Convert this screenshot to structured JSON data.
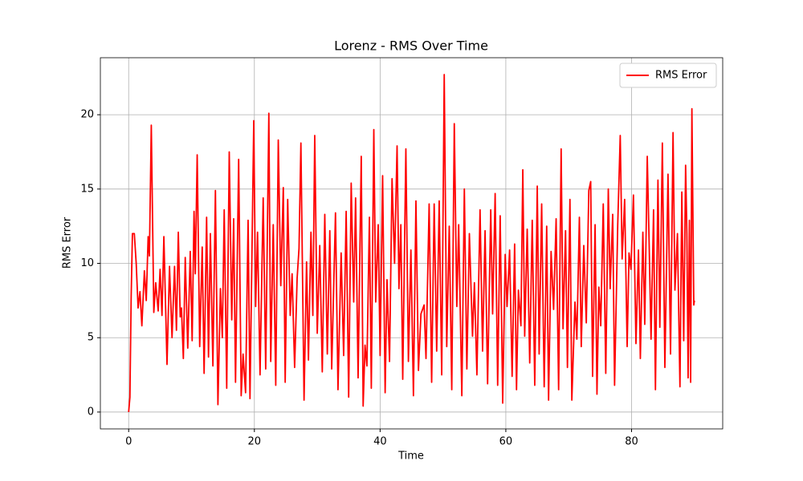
{
  "chart_data": {
    "type": "line",
    "title": "Lorenz - RMS Over Time",
    "xlabel": "Time",
    "ylabel": "RMS Error",
    "x": [
      0,
      0.2,
      0.4,
      0.6,
      0.9,
      1.2,
      1.5,
      1.8,
      2.1,
      2.5,
      2.8,
      3.1,
      3.3,
      3.6,
      4.0,
      4.3,
      4.7,
      5.0,
      5.3,
      5.6,
      6.1,
      6.5,
      6.9,
      7.3,
      7.6,
      7.9,
      8.2,
      8.4,
      8.7,
      9.0,
      9.4,
      9.8,
      10.1,
      10.4,
      10.6,
      10.9,
      11.3,
      11.7,
      12.0,
      12.4,
      12.7,
      13.0,
      13.4,
      13.8,
      14.2,
      14.6,
      14.9,
      15.2,
      15.6,
      16.0,
      16.4,
      16.7,
      17.0,
      17.5,
      17.9,
      18.2,
      18.6,
      19.0,
      19.3,
      19.9,
      20.2,
      20.5,
      20.9,
      21.4,
      21.8,
      22.3,
      22.6,
      23.0,
      23.4,
      23.8,
      24.2,
      24.6,
      24.9,
      25.3,
      25.7,
      26.0,
      26.4,
      26.8,
      27.1,
      27.4,
      27.9,
      28.3,
      28.6,
      29.0,
      29.3,
      29.6,
      30.0,
      30.4,
      30.8,
      31.2,
      31.6,
      32.0,
      32.3,
      32.9,
      33.3,
      33.8,
      34.2,
      34.6,
      35.0,
      35.4,
      35.8,
      36.1,
      36.5,
      37.0,
      37.3,
      37.6,
      37.9,
      38.3,
      38.6,
      39.0,
      39.3,
      39.7,
      40.0,
      40.4,
      40.8,
      41.1,
      41.5,
      41.9,
      42.3,
      42.7,
      43.0,
      43.3,
      43.6,
      44.1,
      44.5,
      44.9,
      45.3,
      45.7,
      46.1,
      46.5,
      47.0,
      47.3,
      47.8,
      48.2,
      48.6,
      49.0,
      49.4,
      49.8,
      50.2,
      50.6,
      51.0,
      51.4,
      51.8,
      52.2,
      52.5,
      53.0,
      53.4,
      53.8,
      54.2,
      54.7,
      55.0,
      55.4,
      55.9,
      56.3,
      56.7,
      57.1,
      57.6,
      57.9,
      58.3,
      58.7,
      59.1,
      59.5,
      59.9,
      60.2,
      60.6,
      61.0,
      61.4,
      61.7,
      62.0,
      62.4,
      62.7,
      63.0,
      63.4,
      63.8,
      64.2,
      64.6,
      65.0,
      65.3,
      65.7,
      66.1,
      66.5,
      66.8,
      67.2,
      67.6,
      68.0,
      68.4,
      68.8,
      69.1,
      69.5,
      69.8,
      70.2,
      70.5,
      71.0,
      71.3,
      71.7,
      72.0,
      72.4,
      72.8,
      73.2,
      73.5,
      73.8,
      74.2,
      74.5,
      74.8,
      75.1,
      75.5,
      75.9,
      76.3,
      76.6,
      77.0,
      77.3,
      77.8,
      78.2,
      78.5,
      78.9,
      79.3,
      79.6,
      79.9,
      80.3,
      80.7,
      81.1,
      81.4,
      81.8,
      82.1,
      82.5,
      82.8,
      83.1,
      83.5,
      83.8,
      84.2,
      84.5,
      84.9,
      85.3,
      85.8,
      86.2,
      86.6,
      86.9,
      87.3,
      87.7,
      88.0,
      88.3,
      88.6,
      88.8,
      89.0,
      89.2,
      89.4,
      89.6,
      89.9,
      90.0
    ],
    "series": [
      {
        "name": "RMS Error",
        "color": "#ff0000",
        "values": [
          0,
          1,
          7.8,
          12,
          12,
          10,
          7,
          8.1,
          5.8,
          9.5,
          7.5,
          11.8,
          10.5,
          19.3,
          6.7,
          8.7,
          6.8,
          9.6,
          6.5,
          11.8,
          3.2,
          9.8,
          5,
          9.8,
          5.5,
          12.1,
          6.4,
          7,
          3.6,
          10.4,
          4.3,
          10.8,
          4.8,
          13.5,
          9.3,
          17.3,
          4.4,
          11.1,
          2.6,
          13.1,
          3.7,
          12,
          3.1,
          14.9,
          0.5,
          8.3,
          5,
          13.6,
          1.6,
          17.5,
          6.2,
          13,
          2,
          17,
          1.1,
          3.9,
          1.3,
          12.9,
          0.9,
          19.6,
          7.1,
          12.1,
          2.5,
          14.4,
          2.9,
          20.1,
          3.4,
          12.6,
          1.8,
          18.3,
          8.5,
          15.1,
          2,
          14.3,
          6.5,
          9.3,
          3,
          9,
          11,
          18.1,
          0.8,
          10.1,
          3.5,
          12.1,
          6.5,
          18.6,
          5.3,
          11.2,
          2.7,
          13.3,
          3.9,
          12.2,
          2.9,
          13.4,
          1.5,
          10.7,
          3.8,
          13.5,
          1,
          15.4,
          7.4,
          14.4,
          2.3,
          17.2,
          0.4,
          4.5,
          3.1,
          13.1,
          1.6,
          19,
          7.4,
          12.6,
          3.8,
          15.9,
          1.3,
          8.9,
          3.4,
          15.7,
          10,
          17.9,
          8.3,
          12.6,
          2.2,
          17.7,
          3.4,
          10.9,
          1.1,
          14.2,
          2.8,
          6.6,
          7.2,
          3.6,
          14,
          2,
          14,
          4.1,
          14.2,
          2.5,
          22.7,
          4.4,
          12.5,
          1.5,
          19.4,
          7.1,
          12.6,
          1.1,
          15,
          2.9,
          12,
          5.1,
          8.7,
          2.5,
          13.6,
          4.1,
          12.2,
          1.9,
          13.6,
          6.6,
          14.7,
          1.8,
          13.2,
          0.6,
          10.6,
          7.1,
          10.9,
          2.4,
          11.3,
          1.5,
          8.2,
          5.8,
          16.3,
          5.1,
          12.3,
          3.3,
          12.9,
          1.8,
          15.2,
          3.9,
          14,
          1.7,
          12.5,
          0.8,
          10.8,
          6.9,
          13,
          1.5,
          17.7,
          5.6,
          12.2,
          3,
          14.3,
          0.8,
          7.4,
          4.9,
          13.1,
          4.4,
          11.2,
          6,
          14.9,
          15.5,
          2.4,
          12.6,
          1.2,
          8.4,
          5.8,
          14,
          2.6,
          15,
          8.3,
          13.3,
          1.8,
          12.6,
          18.6,
          10.3,
          14.3,
          4.4,
          10.7,
          9.6,
          14.6,
          4.6,
          10.9,
          3.6,
          12.1,
          5.9,
          17.2,
          11.3,
          4.9,
          13.6,
          1.5,
          15.6,
          5.7,
          18.1,
          3,
          16,
          3.9,
          18.8,
          8.2,
          12,
          1.7,
          14.8,
          4.8,
          16.6,
          12,
          2.3,
          12.9,
          2,
          20.4,
          7.2,
          7.5
        ]
      }
    ],
    "xlim": [
      -4.5,
      94.5
    ],
    "ylim": [
      -1.135,
      23.835
    ],
    "xticks": [
      0,
      20,
      40,
      60,
      80
    ],
    "yticks": [
      0,
      5,
      10,
      15,
      20
    ],
    "grid": true,
    "legend": "upper right"
  }
}
